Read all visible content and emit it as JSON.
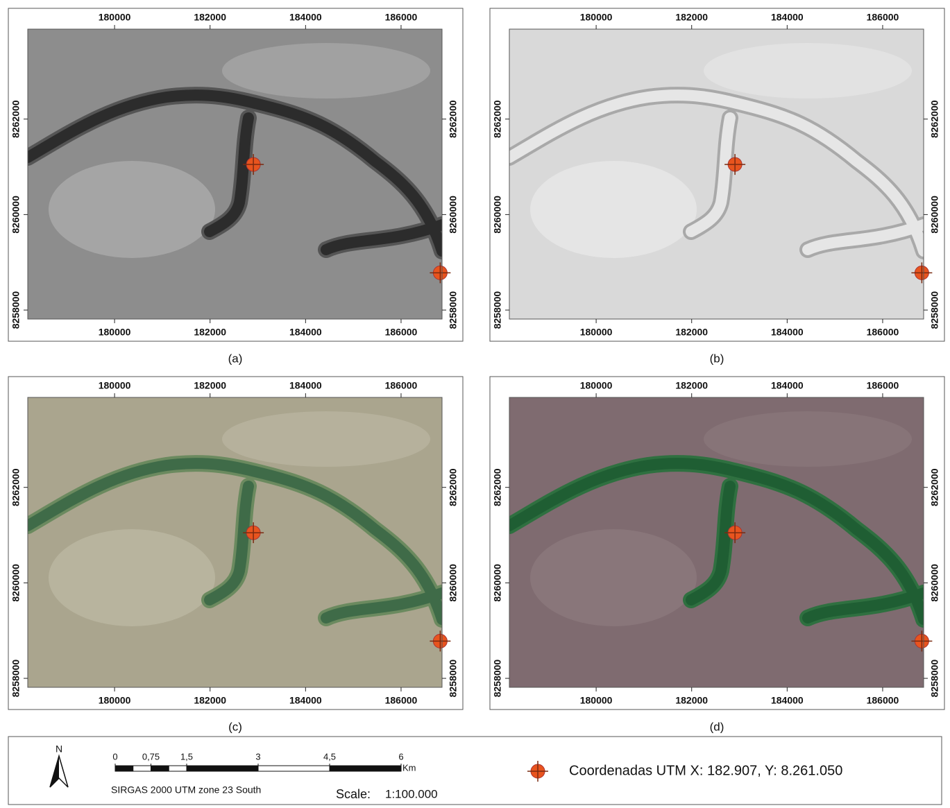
{
  "maps": {
    "xlim": [
      178182,
      186858
    ],
    "ylim": [
      8257812,
      8263884
    ],
    "xticks": [
      180000,
      182000,
      184000,
      186000
    ],
    "yticks": [
      8258000,
      8260000,
      8262000
    ],
    "markers": [
      {
        "x": 182907,
        "y": 8261050
      },
      {
        "x": 186820,
        "y": 8258780
      }
    ],
    "captions": [
      "(a)",
      "(b)",
      "(c)",
      "(d)"
    ]
  },
  "legend": {
    "north": "N",
    "scale_bar": {
      "ticks": [
        0,
        {
          "value": 0.75,
          "label": "0,75"
        },
        {
          "value": 1.5,
          "label": "1,5"
        },
        3,
        {
          "value": 4.5,
          "label": "4,5"
        },
        6
      ],
      "unit": "Km"
    },
    "crs": "SIRGAS 2000 UTM zone 23 South",
    "scale_label": "Scale:",
    "scale": "1:100.000",
    "point_label": "Coordenadas UTM X: 182.907, Y: 8.261.050"
  }
}
